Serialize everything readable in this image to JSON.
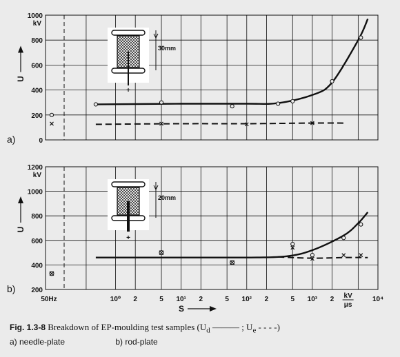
{
  "caption": {
    "label": "Fig. 1.3-8",
    "text": "Breakdown of EP-moulding test samples (U",
    "ud_sub": "d",
    "ud_mid": " ——— ; U",
    "ue_sub": "e",
    "ue_end": " - - - -)",
    "part_a": "a)  needle-plate",
    "part_b": "b)  rod-plate"
  },
  "x_axis": {
    "label": "S",
    "ticks": [
      "50Hz",
      "10⁰",
      "2",
      "5",
      "10¹",
      "2",
      "5",
      "10²",
      "2",
      "5",
      "10³",
      "2",
      "kV/μs",
      "10⁴"
    ]
  },
  "colors": {
    "ink": "#111111",
    "background": "#ebebeb",
    "grid": "#222222"
  },
  "chart_data": [
    {
      "type": "line",
      "panel_label": "a)",
      "y_axis_label": "U",
      "y_unit": "kV",
      "ylim": [
        0,
        1000
      ],
      "y_ticks": [
        0,
        200,
        400,
        600,
        800,
        1000
      ],
      "x_scale": "log",
      "x_label": "S",
      "inset": {
        "electrode": "needle",
        "gap_label": "30mm",
        "polarity": "+"
      },
      "series": [
        {
          "key": "Ud",
          "style": "solid",
          "curve": [
            [
              0.5,
              285
            ],
            [
              10,
              290
            ],
            [
              100,
              290
            ],
            [
              300,
              295
            ],
            [
              1000,
              360
            ],
            [
              2000,
              460
            ],
            [
              5000,
              800
            ],
            [
              7000,
              970
            ]
          ],
          "markers": "circle",
          "points": [
            [
              0.5,
              285
            ],
            [
              5,
              300
            ],
            [
              60,
              270
            ],
            [
              300,
              290
            ],
            [
              500,
              310
            ],
            [
              2000,
              470
            ],
            [
              5500,
              820
            ]
          ]
        },
        {
          "key": "Ue",
          "style": "dashed",
          "curve": [
            [
              0.5,
              125
            ],
            [
              10,
              130
            ],
            [
              100,
              130
            ],
            [
              1000,
              135
            ],
            [
              3000,
              135
            ]
          ],
          "markers": "x",
          "points": [
            [
              5,
              130
            ],
            [
              100,
              125
            ],
            [
              1000,
              135
            ]
          ]
        },
        {
          "key": "50Hz",
          "style": "none",
          "points_circle": [
            [
              200
            ]
          ],
          "points_x": [
            [
              130
            ]
          ]
        }
      ]
    },
    {
      "type": "line",
      "panel_label": "b)",
      "y_axis_label": "U",
      "y_unit": "kV",
      "ylim": [
        200,
        1200
      ],
      "y_ticks": [
        200,
        400,
        600,
        800,
        1000,
        1200
      ],
      "x_scale": "log",
      "x_label": "S",
      "inset": {
        "electrode": "rod",
        "gap_label": "20mm",
        "polarity": "+"
      },
      "series": [
        {
          "key": "Ud",
          "style": "solid",
          "curve": [
            [
              0.5,
              460
            ],
            [
              10,
              460
            ],
            [
              100,
              460
            ],
            [
              400,
              470
            ],
            [
              1000,
              520
            ],
            [
              3000,
              640
            ],
            [
              5000,
              740
            ],
            [
              7000,
              830
            ]
          ],
          "markers": "circle",
          "points": [
            [
              500,
              570
            ],
            [
              1000,
              480
            ],
            [
              3000,
              620
            ],
            [
              5500,
              730
            ]
          ]
        },
        {
          "key": "Ue",
          "style": "dashed",
          "curve": [
            [
              300,
              465
            ],
            [
              1000,
              455
            ],
            [
              3000,
              460
            ],
            [
              7000,
              460
            ]
          ],
          "markers": "x",
          "points": [
            [
              500,
              540
            ],
            [
              1000,
              450
            ],
            [
              3000,
              480
            ],
            [
              5500,
              480
            ]
          ]
        },
        {
          "key": "combined",
          "style": "none",
          "points_combo": [
            [
              5,
              500
            ],
            [
              60,
              420
            ]
          ],
          "points_50hz": [
            330
          ]
        }
      ]
    }
  ]
}
